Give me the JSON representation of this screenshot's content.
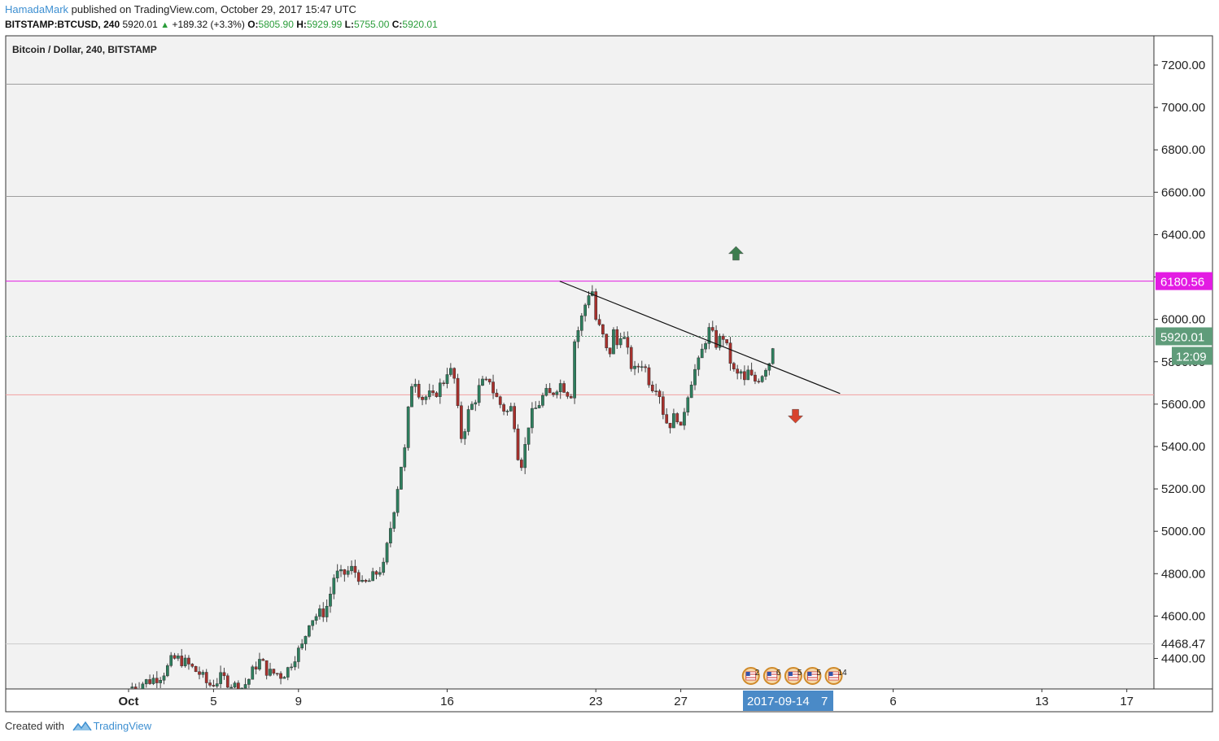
{
  "header": {
    "author": "HamadaMark",
    "published_text": "published on TradingView.com, October 29, 2017 15:47 UTC",
    "symbol_line": "BITSTAMP:BTCUSD, 240",
    "last_price": "5920.01",
    "change": "+189.32 (+3.3%)",
    "open_label": "O:",
    "open_value": "5805.90",
    "high_label": "H:",
    "high_value": "5929.99",
    "low_label": "L:",
    "low_value": "5755.00",
    "close_label": "C:",
    "close_value": "5920.01"
  },
  "footer": {
    "created_with": "Created with",
    "brand": "TradingView"
  },
  "colors": {
    "up_candle": "#2d7f5e",
    "down_candle": "#a8302c",
    "magenta_line": "#e31be3",
    "last_price_box": "#5f9c7a",
    "date_badge": "#4a8ac7"
  },
  "chart_data": {
    "type": "candlestick",
    "title": "Bitcoin / Dollar, 240, BITSTAMP",
    "ylim": [
      4260,
      7300
    ],
    "y_ticks": [
      "7200.00",
      "7000.00",
      "6800.00",
      "6600.00",
      "6400.00",
      "6200.00",
      "6000.00",
      "5800.00",
      "5600.00",
      "5400.00",
      "5200.00",
      "5000.00",
      "4800.00",
      "4600.00",
      "4400.00"
    ],
    "x_ticks": [
      {
        "label": "Oct",
        "day": 1
      },
      {
        "label": "5",
        "day": 5
      },
      {
        "label": "9",
        "day": 9
      },
      {
        "label": "16",
        "day": 16
      },
      {
        "label": "23",
        "day": 23
      },
      {
        "label": "27",
        "day": 27
      },
      {
        "label": "6",
        "day": 37
      },
      {
        "label": "13",
        "day": 44
      },
      {
        "label": "17",
        "day": 48
      }
    ],
    "horizontal_levels": [
      {
        "price": 7110,
        "color": "#9e9e9e",
        "label": ""
      },
      {
        "price": 6580,
        "color": "#9e9e9e",
        "label": ""
      },
      {
        "price": 6180.56,
        "color": "#e31be3",
        "label": "6180.56"
      },
      {
        "price": 5920.01,
        "color": "#5f9c7a",
        "label": "5920.01",
        "style": "dotted"
      },
      {
        "price": 5644,
        "color": "#f2a0a0",
        "label": ""
      },
      {
        "price": 4468.47,
        "color": "#cccccc",
        "label": "4468.47"
      }
    ],
    "countdown": "12:09",
    "date_badge": "2017-09-14",
    "date_badge_suffix": "7",
    "trendline": {
      "from": {
        "day": 21.3,
        "price": 6180
      },
      "to": {
        "day": 34.5,
        "price": 5650
      }
    },
    "arrows": [
      {
        "direction": "up",
        "day": 29.6,
        "price": 6310,
        "color": "#3e7d4f"
      },
      {
        "direction": "down",
        "day": 32.4,
        "price": 5545,
        "color": "#d8432d"
      }
    ],
    "events": [
      {
        "day": 30.3,
        "count": "2"
      },
      {
        "day": 31.3,
        "count": "6"
      },
      {
        "day": 32.3,
        "count": "5"
      },
      {
        "day": 33.2,
        "count": "5"
      },
      {
        "day": 34.2,
        "count": "14"
      }
    ],
    "candles_anchors": [
      [
        0.0,
        4260
      ],
      [
        0.4,
        4275
      ],
      [
        0.8,
        4290
      ],
      [
        1.1,
        4300
      ],
      [
        1.5,
        4320
      ],
      [
        1.8,
        4350
      ],
      [
        2.0,
        4385
      ],
      [
        2.2,
        4400
      ],
      [
        2.5,
        4390
      ],
      [
        2.8,
        4370
      ],
      [
        3.1,
        4345
      ],
      [
        3.4,
        4325
      ],
      [
        3.6,
        4290
      ],
      [
        3.8,
        4275
      ],
      [
        4.1,
        4290
      ],
      [
        4.4,
        4310
      ],
      [
        4.7,
        4290
      ],
      [
        5.0,
        4270
      ],
      [
        5.3,
        4260
      ],
      [
        5.6,
        4290
      ],
      [
        5.8,
        4330
      ],
      [
        6.0,
        4370
      ],
      [
        6.2,
        4390
      ],
      [
        6.4,
        4360
      ],
      [
        6.6,
        4330
      ],
      [
        7.0,
        4330
      ],
      [
        7.2,
        4320
      ],
      [
        7.5,
        4350
      ],
      [
        7.8,
        4410
      ],
      [
        8.2,
        4460
      ],
      [
        8.5,
        4580
      ],
      [
        8.8,
        4600
      ],
      [
        9.2,
        4620
      ],
      [
        9.4,
        4660
      ],
      [
        9.7,
        4800
      ],
      [
        10.0,
        4790
      ],
      [
        10.5,
        4820
      ],
      [
        10.8,
        4800
      ],
      [
        11.0,
        4740
      ],
      [
        11.4,
        4770
      ],
      [
        11.8,
        4820
      ],
      [
        12.0,
        4830
      ],
      [
        12.3,
        5000
      ],
      [
        12.6,
        5170
      ],
      [
        12.8,
        5300
      ],
      [
        13.0,
        5380
      ],
      [
        13.2,
        5600
      ],
      [
        13.4,
        5750
      ],
      [
        13.7,
        5650
      ],
      [
        13.9,
        5620
      ],
      [
        14.1,
        5650
      ],
      [
        14.3,
        5620
      ],
      [
        14.6,
        5680
      ],
      [
        14.8,
        5700
      ],
      [
        15.0,
        5760
      ],
      [
        15.2,
        5750
      ],
      [
        15.4,
        5700
      ],
      [
        15.6,
        5430
      ],
      [
        15.8,
        5480
      ],
      [
        16.0,
        5560
      ],
      [
        16.3,
        5620
      ],
      [
        16.6,
        5700
      ],
      [
        16.8,
        5690
      ],
      [
        17.0,
        5720
      ],
      [
        17.2,
        5650
      ],
      [
        17.5,
        5600
      ],
      [
        17.8,
        5560
      ],
      [
        18.0,
        5580
      ],
      [
        18.2,
        5500
      ],
      [
        18.4,
        5300
      ],
      [
        18.6,
        5350
      ],
      [
        18.8,
        5500
      ],
      [
        19.0,
        5550
      ],
      [
        19.3,
        5600
      ],
      [
        19.6,
        5650
      ],
      [
        19.9,
        5640
      ],
      [
        20.1,
        5680
      ],
      [
        20.4,
        5700
      ],
      [
        20.6,
        5660
      ],
      [
        20.9,
        5650
      ],
      [
        21.0,
        5900
      ],
      [
        21.2,
        5960
      ],
      [
        21.4,
        6030
      ],
      [
        21.6,
        6110
      ],
      [
        21.8,
        6160
      ],
      [
        22.0,
        6000
      ],
      [
        22.2,
        5950
      ],
      [
        22.4,
        5900
      ],
      [
        22.6,
        5800
      ],
      [
        22.8,
        5950
      ],
      [
        23.0,
        5880
      ],
      [
        23.2,
        5950
      ],
      [
        23.4,
        5880
      ],
      [
        23.6,
        5800
      ],
      [
        23.8,
        5750
      ],
      [
        24.0,
        5780
      ],
      [
        24.2,
        5800
      ],
      [
        24.4,
        5750
      ],
      [
        24.6,
        5680
      ],
      [
        24.8,
        5700
      ],
      [
        25.0,
        5650
      ],
      [
        25.2,
        5550
      ],
      [
        25.4,
        5500
      ],
      [
        25.6,
        5520
      ],
      [
        25.8,
        5560
      ],
      [
        26.0,
        5470
      ],
      [
        26.2,
        5600
      ],
      [
        26.4,
        5680
      ],
      [
        26.6,
        5750
      ],
      [
        26.8,
        5780
      ],
      [
        27.0,
        5850
      ],
      [
        27.2,
        5920
      ],
      [
        27.4,
        5960
      ],
      [
        27.6,
        5880
      ],
      [
        27.8,
        5900
      ],
      [
        28.0,
        5920
      ],
      [
        28.2,
        5850
      ],
      [
        28.4,
        5780
      ],
      [
        28.6,
        5720
      ],
      [
        28.8,
        5760
      ],
      [
        29.0,
        5700
      ],
      [
        29.2,
        5760
      ],
      [
        29.4,
        5700
      ],
      [
        29.6,
        5720
      ],
      [
        29.8,
        5740
      ],
      [
        30.0,
        5780
      ],
      [
        30.2,
        5805
      ],
      [
        30.4,
        5920
      ]
    ]
  }
}
